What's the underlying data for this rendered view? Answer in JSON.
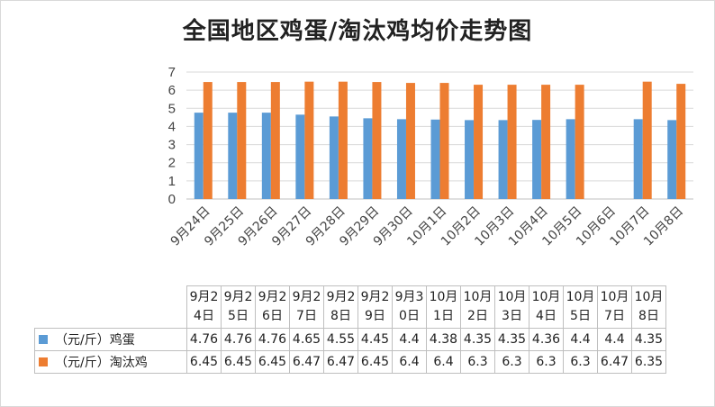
{
  "chart_data": {
    "type": "bar",
    "title": "全国地区鸡蛋/淘汰鸡均价走势图",
    "categories": [
      "9月24日",
      "9月25日",
      "9月26日",
      "9月27日",
      "9月28日",
      "9月29日",
      "9月30日",
      "10月1日",
      "10月2日",
      "10月3日",
      "10月4日",
      "10月5日",
      "10月6日",
      "10月7日",
      "10月8日"
    ],
    "series": [
      {
        "name": "（元/斤）鸡蛋",
        "color": "#5b9bd5",
        "values": [
          4.76,
          4.76,
          4.76,
          4.65,
          4.55,
          4.45,
          4.4,
          4.38,
          4.35,
          4.35,
          4.36,
          4.4,
          null,
          4.4,
          4.35
        ]
      },
      {
        "name": "（元/斤）淘汰鸡",
        "color": "#ed7d31",
        "values": [
          6.45,
          6.45,
          6.45,
          6.47,
          6.47,
          6.45,
          6.4,
          6.4,
          6.3,
          6.3,
          6.3,
          6.3,
          null,
          6.47,
          6.35
        ]
      }
    ],
    "ylim": [
      0,
      7
    ],
    "yticks": [
      0,
      1,
      2,
      3,
      4,
      5,
      6,
      7
    ],
    "grid": true,
    "legend": "data-table",
    "table": {
      "headers": [
        "9月24日",
        "9月25日",
        "9月26日",
        "9月27日",
        "9月28日",
        "9月29日",
        "9月30日",
        "10月1日",
        "10月2日",
        "10月3日",
        "10月4日",
        "10月5日",
        "10月7日",
        "10月8日"
      ],
      "rows": [
        {
          "label": "（元/斤）鸡蛋",
          "color": "#5b9bd5",
          "values": [
            "4.76",
            "4.76",
            "4.76",
            "4.65",
            "4.55",
            "4.45",
            "4.4",
            "4.38",
            "4.35",
            "4.35",
            "4.36",
            "4.4",
            "4.4",
            "4.35"
          ]
        },
        {
          "label": "（元/斤）淘汰鸡",
          "color": "#ed7d31",
          "values": [
            "6.45",
            "6.45",
            "6.45",
            "6.47",
            "6.47",
            "6.45",
            "6.4",
            "6.4",
            "6.3",
            "6.3",
            "6.3",
            "6.3",
            "6.47",
            "6.35"
          ]
        }
      ]
    }
  }
}
